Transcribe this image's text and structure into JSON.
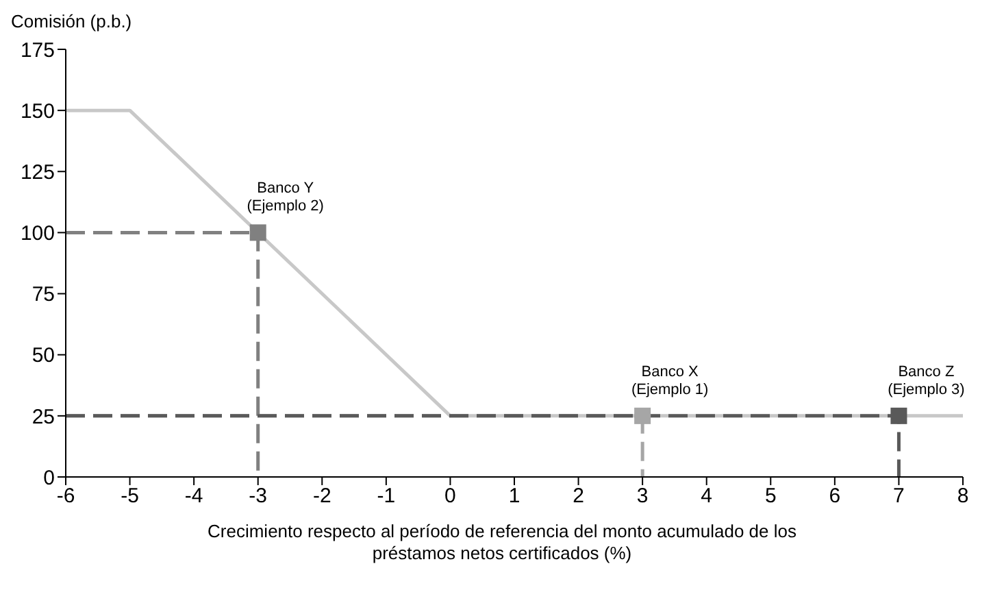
{
  "chart_data": {
    "type": "line",
    "ylabel": "Comisión (p.b.)",
    "xlabel": "Crecimiento respecto al período de referencia del monto acumulado de los préstamos netos certificados (%)",
    "xlim": [
      -6,
      8
    ],
    "xticks": [
      -6,
      -5,
      -4,
      -3,
      -2,
      -1,
      0,
      1,
      2,
      3,
      4,
      5,
      6,
      7,
      8
    ],
    "ylim": [
      0,
      175
    ],
    "yticks": [
      0,
      25,
      50,
      75,
      100,
      125,
      150,
      175
    ],
    "series": [
      {
        "color": "#c8c8c8",
        "x": [
          -6,
          -5,
          0,
          8
        ],
        "values": [
          150,
          150,
          25,
          25
        ],
        "line_style": "solid"
      },
      {
        "color": "#808080",
        "x": [
          -6,
          -3,
          -3
        ],
        "values": [
          100,
          100,
          0
        ],
        "line_style": "dashed"
      },
      {
        "color": "#a6a6a6",
        "x": [
          -6,
          3,
          3
        ],
        "values": [
          25,
          25,
          0
        ],
        "line_style": "dashed"
      },
      {
        "color": "#595959",
        "x": [
          -6,
          7,
          7
        ],
        "values": [
          25,
          25,
          0
        ],
        "line_style": "dashed"
      },
      {
        "type": "scatter",
        "color": "#808080",
        "x": [
          -3
        ],
        "values": [
          100
        ],
        "marker": "square"
      },
      {
        "type": "scatter",
        "color": "#a6a6a6",
        "x": [
          3
        ],
        "values": [
          25
        ],
        "marker": "square"
      },
      {
        "type": "scatter",
        "color": "#595959",
        "x": [
          7
        ],
        "values": [
          25
        ],
        "marker": "square"
      }
    ],
    "annotations": [
      {
        "text": "Banco Y\n(Ejemplo 2)",
        "x": -3,
        "y": 100
      },
      {
        "text": "Banco X\n(Ejemplo 1)",
        "x": 3,
        "y": 25
      },
      {
        "text": "Banco Z\n(Ejemplo 3)",
        "x": 7,
        "y": 25
      }
    ]
  }
}
